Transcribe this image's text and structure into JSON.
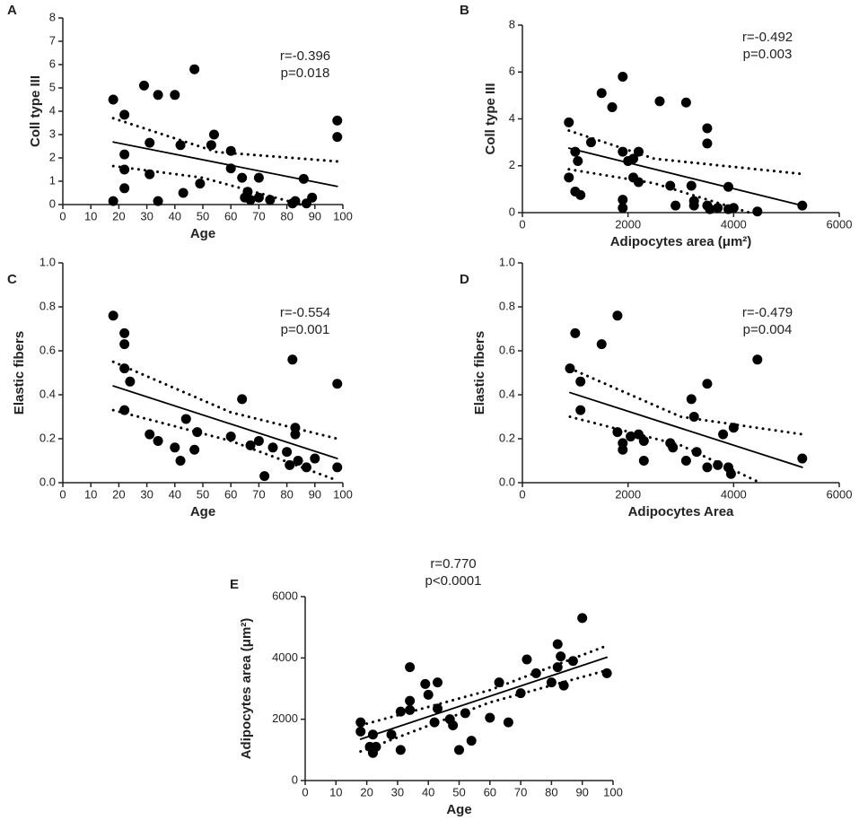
{
  "chart_data": [
    {
      "type": "scatter",
      "panel": "A",
      "annotations": [
        "r=-0.396",
        "p=0.018"
      ],
      "xlabel": "Age",
      "ylabel": "Coll type III",
      "x": [
        18,
        18,
        22,
        22,
        22,
        22,
        29,
        31,
        31,
        34,
        34,
        40,
        42,
        43,
        47,
        49,
        53,
        54,
        60,
        60,
        64,
        65,
        66,
        67,
        70,
        70,
        74,
        82,
        83,
        86,
        87,
        89,
        98,
        98
      ],
      "y": [
        4.5,
        0.15,
        3.85,
        2.15,
        1.5,
        0.7,
        5.1,
        2.65,
        1.3,
        4.7,
        0.15,
        4.7,
        2.55,
        0.5,
        5.8,
        0.9,
        2.55,
        3.0,
        2.3,
        1.55,
        1.15,
        0.3,
        0.55,
        0.2,
        1.15,
        0.3,
        0.2,
        0.05,
        0.15,
        1.1,
        0.05,
        0.3,
        3.6,
        2.9
      ],
      "fit": {
        "x": [
          18,
          98
        ],
        "y": [
          2.68,
          0.78
        ]
      },
      "upper": {
        "x": [
          18,
          55,
          98
        ],
        "y": [
          3.7,
          2.25,
          1.85
        ]
      },
      "lower": {
        "x": [
          18,
          50,
          85
        ],
        "y": [
          1.65,
          1.15,
          0
        ]
      },
      "color": "#000000",
      "xlim": [
        0,
        100
      ],
      "xticks": [
        0,
        10,
        20,
        30,
        40,
        50,
        60,
        70,
        80,
        90,
        100
      ],
      "ylim": [
        0,
        8
      ],
      "yticks": [
        0,
        1,
        2,
        3,
        4,
        5,
        6,
        7,
        8
      ]
    },
    {
      "type": "scatter",
      "panel": "B",
      "annotations": [
        "r=-0.492",
        "p=0.003"
      ],
      "xlabel": "Adipocytes area (μm²)",
      "ylabel": "Coll type III",
      "x": [
        880,
        880,
        1000,
        1000,
        1050,
        1100,
        1300,
        1500,
        1700,
        1900,
        1900,
        1900,
        1900,
        2000,
        2100,
        2100,
        2200,
        2200,
        2600,
        2800,
        2900,
        3100,
        3200,
        3250,
        3250,
        3500,
        3500,
        3500,
        3550,
        3700,
        3900,
        3900,
        4000,
        4450,
        5300
      ],
      "y": [
        3.85,
        1.5,
        2.6,
        0.9,
        2.2,
        0.75,
        3.0,
        5.1,
        4.5,
        5.8,
        2.6,
        0.55,
        0.2,
        2.2,
        2.3,
        1.5,
        2.6,
        1.3,
        4.75,
        1.15,
        0.3,
        4.7,
        1.15,
        0.5,
        0.3,
        3.6,
        2.95,
        0.3,
        0.15,
        0.2,
        1.1,
        0.15,
        0.2,
        0.05,
        0.3
      ],
      "fit": {
        "x": [
          880,
          5300
        ],
        "y": [
          2.75,
          0.3
        ]
      },
      "upper": {
        "x": [
          880,
          2500,
          5300
        ],
        "y": [
          3.5,
          2.3,
          1.65
        ]
      },
      "lower": {
        "x": [
          880,
          2500,
          4300
        ],
        "y": [
          1.85,
          1.25,
          0
        ]
      },
      "color": "#000000",
      "xlim": [
        0,
        6000
      ],
      "xticks": [
        0,
        2000,
        4000,
        6000
      ],
      "ylim": [
        0,
        8
      ],
      "yticks": [
        0,
        2,
        4,
        6,
        8
      ]
    },
    {
      "type": "scatter",
      "panel": "C",
      "annotations": [
        "r=-0.554",
        "p=0.001"
      ],
      "xlabel": "Age",
      "ylabel": "Elastic fibers",
      "x": [
        18,
        22,
        22,
        22,
        22,
        24,
        31,
        34,
        40,
        42,
        44,
        47,
        48,
        60,
        64,
        67,
        70,
        72,
        75,
        80,
        81,
        82,
        83,
        83,
        84,
        87,
        90,
        98,
        98
      ],
      "y": [
        0.76,
        0.68,
        0.63,
        0.52,
        0.33,
        0.46,
        0.22,
        0.19,
        0.16,
        0.1,
        0.29,
        0.15,
        0.23,
        0.21,
        0.38,
        0.17,
        0.19,
        0.03,
        0.16,
        0.14,
        0.08,
        0.56,
        0.25,
        0.22,
        0.1,
        0.07,
        0.11,
        0.45,
        0.07
      ],
      "fit": {
        "x": [
          18,
          98
        ],
        "y": [
          0.44,
          0.11
        ]
      },
      "upper": {
        "x": [
          18,
          60,
          98
        ],
        "y": [
          0.55,
          0.32,
          0.2
        ]
      },
      "lower": {
        "x": [
          18,
          60,
          98
        ],
        "y": [
          0.33,
          0.19,
          0.01
        ]
      },
      "color": "#000000",
      "xlim": [
        0,
        100
      ],
      "xticks": [
        0,
        10,
        20,
        30,
        40,
        50,
        60,
        70,
        80,
        90,
        100
      ],
      "ylim": [
        0,
        1
      ],
      "yticks": [
        {
          "value": 0,
          "label": "0.0"
        },
        0.2,
        0.4,
        0.6,
        0.8,
        {
          "value": 1,
          "label": "1.0"
        }
      ]
    },
    {
      "type": "scatter",
      "panel": "D",
      "annotations": [
        "r=-0.479",
        "p=0.004"
      ],
      "xlabel": "Adipocytes Area",
      "ylabel": "Elastic fibers",
      "x": [
        900,
        1000,
        1100,
        1100,
        1500,
        1800,
        1800,
        1900,
        1900,
        2050,
        2200,
        2300,
        2300,
        2800,
        2850,
        3100,
        3200,
        3250,
        3300,
        3500,
        3500,
        3700,
        3800,
        3900,
        3950,
        4000,
        4450,
        5300
      ],
      "y": [
        0.52,
        0.68,
        0.46,
        0.33,
        0.63,
        0.76,
        0.23,
        0.18,
        0.15,
        0.21,
        0.22,
        0.19,
        0.1,
        0.18,
        0.16,
        0.1,
        0.38,
        0.3,
        0.14,
        0.45,
        0.07,
        0.08,
        0.22,
        0.07,
        0.04,
        0.25,
        0.56,
        0.11
      ],
      "fit": {
        "x": [
          900,
          5300
        ],
        "y": [
          0.41,
          0.07
        ]
      },
      "upper": {
        "x": [
          900,
          3000,
          5300
        ],
        "y": [
          0.52,
          0.3,
          0.22
        ]
      },
      "lower": {
        "x": [
          900,
          3000,
          4500
        ],
        "y": [
          0.3,
          0.17,
          0
        ]
      },
      "color": "#000000",
      "xlim": [
        0,
        6000
      ],
      "xticks": [
        0,
        2000,
        4000,
        6000
      ],
      "ylim": [
        0,
        1
      ],
      "yticks": [
        {
          "value": 0,
          "label": "0.0"
        },
        0.2,
        0.4,
        0.6,
        0.8,
        {
          "value": 1,
          "label": "1.0"
        }
      ]
    },
    {
      "type": "scatter",
      "panel": "E",
      "annotations": [
        "r=0.770",
        "p<0.0001"
      ],
      "xlabel": "Age",
      "ylabel": "Adipocytes area (μm²)",
      "x": [
        18,
        18,
        21,
        22,
        22,
        23,
        28,
        31,
        31,
        34,
        34,
        34,
        39,
        40,
        42,
        43,
        43,
        47,
        48,
        50,
        52,
        54,
        60,
        63,
        66,
        70,
        72,
        75,
        80,
        82,
        82,
        83,
        84,
        87,
        90,
        98
      ],
      "y": [
        1900,
        1600,
        1100,
        1500,
        900,
        1100,
        1500,
        2250,
        1000,
        3700,
        2600,
        2300,
        3150,
        2800,
        1900,
        3200,
        2350,
        2000,
        1800,
        1000,
        2200,
        1300,
        2050,
        3200,
        1900,
        2850,
        3950,
        3500,
        3200,
        4450,
        3700,
        4050,
        3100,
        3900,
        5300,
        3500
      ],
      "fit": {
        "x": [
          18,
          98
        ],
        "y": [
          1350,
          4020
        ]
      },
      "upper": {
        "x": [
          18,
          60,
          98
        ],
        "y": [
          1800,
          2950,
          4400
        ]
      },
      "lower": {
        "x": [
          18,
          60,
          98
        ],
        "y": [
          950,
          2550,
          3600
        ]
      },
      "color": "#000000",
      "xlim": [
        0,
        100
      ],
      "xticks": [
        0,
        10,
        20,
        30,
        40,
        50,
        60,
        70,
        80,
        90,
        100
      ],
      "ylim": [
        0,
        6000
      ],
      "yticks": [
        0,
        2000,
        4000,
        6000
      ]
    }
  ]
}
